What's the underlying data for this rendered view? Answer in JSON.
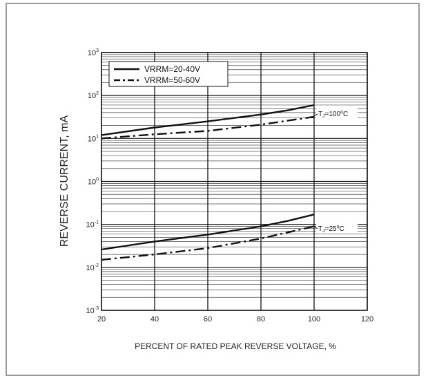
{
  "chart_data": {
    "type": "line",
    "title": "",
    "xlabel": "PERCENT OF RATED PEAK REVERSE VOLTAGE, %",
    "ylabel": "REVERSE CURRENT, mA",
    "xlim": [
      20,
      120
    ],
    "ylim": [
      0.001,
      1000
    ],
    "yscale": "log",
    "grid": true,
    "legend_position": "top-left",
    "x_ticks": [
      "20",
      "40",
      "60",
      "80",
      "100",
      "120"
    ],
    "y_ticks": [
      {
        "base": "10",
        "exp": "3"
      },
      {
        "base": "10",
        "exp": "2"
      },
      {
        "base": "10",
        "exp": "1"
      },
      {
        "base": "10",
        "exp": "0"
      },
      {
        "base": "10",
        "exp": "-1"
      },
      {
        "base": "10",
        "exp": "-2"
      },
      {
        "base": "10",
        "exp": "-3"
      }
    ],
    "legend": [
      {
        "label": "VRRM=20-40V",
        "style": "solid"
      },
      {
        "label": "VRRM=50-60V",
        "style": "dashdot"
      }
    ],
    "series": [
      {
        "name": "VRRM=20-40V",
        "group": "TJ=100°C",
        "style": "solid",
        "x": [
          20,
          40,
          60,
          80,
          90,
          100
        ],
        "y": [
          12,
          18,
          25,
          36,
          45,
          60
        ]
      },
      {
        "name": "VRRM=50-60V",
        "group": "TJ=100°C",
        "style": "dashdot",
        "x": [
          20,
          40,
          60,
          80,
          100
        ],
        "y": [
          10,
          12.5,
          15,
          21,
          32
        ]
      },
      {
        "name": "VRRM=20-40V",
        "group": "TJ=25°C",
        "style": "solid",
        "x": [
          20,
          40,
          60,
          80,
          90,
          100
        ],
        "y": [
          0.026,
          0.04,
          0.058,
          0.09,
          0.12,
          0.17
        ]
      },
      {
        "name": "VRRM=50-60V",
        "group": "TJ=25°C",
        "style": "dashdot",
        "x": [
          20,
          40,
          60,
          80,
          100
        ],
        "y": [
          0.015,
          0.02,
          0.028,
          0.047,
          0.09
        ]
      }
    ],
    "annotations": [
      {
        "prefix": "T",
        "sub": "J",
        "middle": "=100",
        "sup": "o",
        "suffix": "C",
        "anchor_x": 100,
        "anchor_y": 32
      },
      {
        "prefix": "T",
        "sub": "J",
        "middle": "=25",
        "sup": "o",
        "suffix": "C",
        "anchor_x": 100,
        "anchor_y": 0.09
      }
    ]
  }
}
